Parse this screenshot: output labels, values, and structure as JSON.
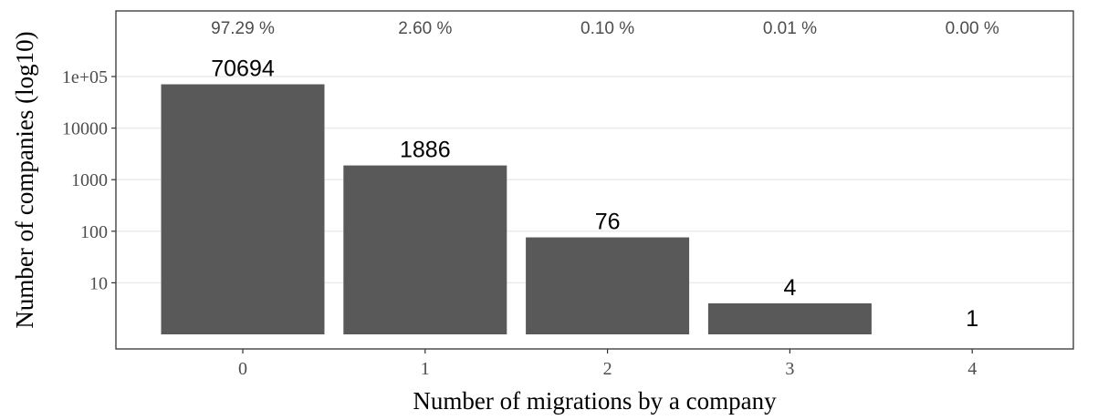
{
  "chart_data": {
    "type": "bar",
    "title": "",
    "xlabel": "Number of migrations by a company",
    "ylabel": "Number of companies (log10)",
    "y_scale": "log10",
    "categories": [
      "0",
      "1",
      "2",
      "3",
      "4"
    ],
    "values": [
      70694,
      1886,
      76,
      4,
      1
    ],
    "value_labels": [
      "70694",
      "1886",
      "76",
      "4",
      "1"
    ],
    "percent_labels": [
      "97.29 %",
      "2.60 %",
      "0.10 %",
      "0.01 %",
      "0.00 %"
    ],
    "y_ticks": [
      10,
      100,
      1000,
      10000,
      100000
    ],
    "y_tick_labels": [
      "10",
      "100",
      "1000",
      "10000",
      "1e+05"
    ],
    "ylim": [
      1,
      500000
    ],
    "grid": true,
    "legend": "none",
    "colors": {
      "bar": "#595959",
      "grid": "#ebebeb",
      "panel_border": "#333333",
      "tick_text": "#4d4d4d"
    }
  }
}
